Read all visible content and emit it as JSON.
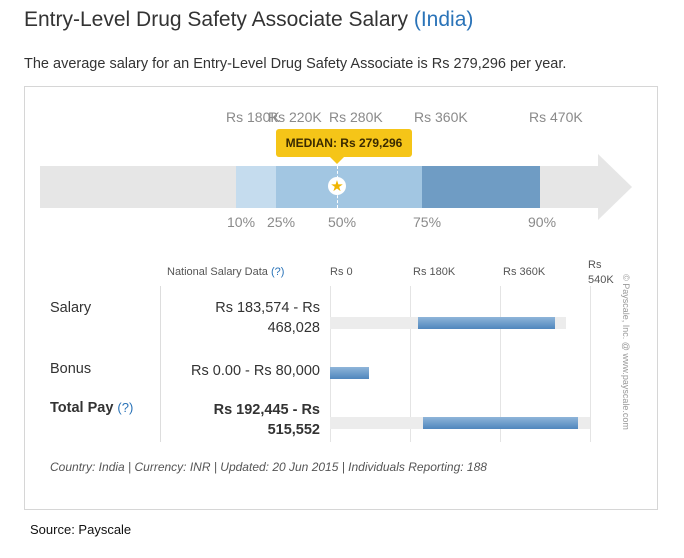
{
  "header": {
    "title": "Entry-Level Drug Safety Associate Salary",
    "country": "(India)",
    "subtitle": "The average salary for an Entry-Level Drug Safety Associate is Rs 279,296 per year."
  },
  "distribution": {
    "top_ticks": [
      "Rs 180K",
      "Rs 220K",
      "Rs 280K",
      "Rs 360K",
      "Rs 470K"
    ],
    "percentile_ticks": [
      "10%",
      "25%",
      "50%",
      "75%",
      "90%"
    ],
    "median_label": "MEDIAN: Rs 279,296",
    "colors": {
      "p10_25": "#c5dcee",
      "p25_75": "#a2c6e2",
      "p75_90": "#6f9cc4",
      "median_tag": "#f5c518",
      "track": "#e6e6e6"
    },
    "star_icon": "★"
  },
  "table": {
    "heading": "National Salary Data",
    "heading_help": "(?)",
    "scale": [
      "Rs 0",
      "Rs 180K",
      "Rs 360K",
      "Rs 540K"
    ],
    "rows": [
      {
        "label": "Salary",
        "value": "Rs 183,574 - Rs 468,028",
        "min": 183574,
        "max": 468028
      },
      {
        "label": "Bonus",
        "value": "Rs 0.00 - Rs 80,000",
        "min": 0,
        "max": 80000
      },
      {
        "label": "Total Pay",
        "help": "(?)",
        "value": "Rs 192,445 - Rs 515,552",
        "min": 192445,
        "max": 515552
      }
    ],
    "meta": "Country: India | Currency: INR | Updated: 20 Jun 2015 | Individuals Reporting: 188",
    "copyright": "© Payscale, Inc. @ www.payscale.com"
  },
  "source": "Source: Payscale"
}
